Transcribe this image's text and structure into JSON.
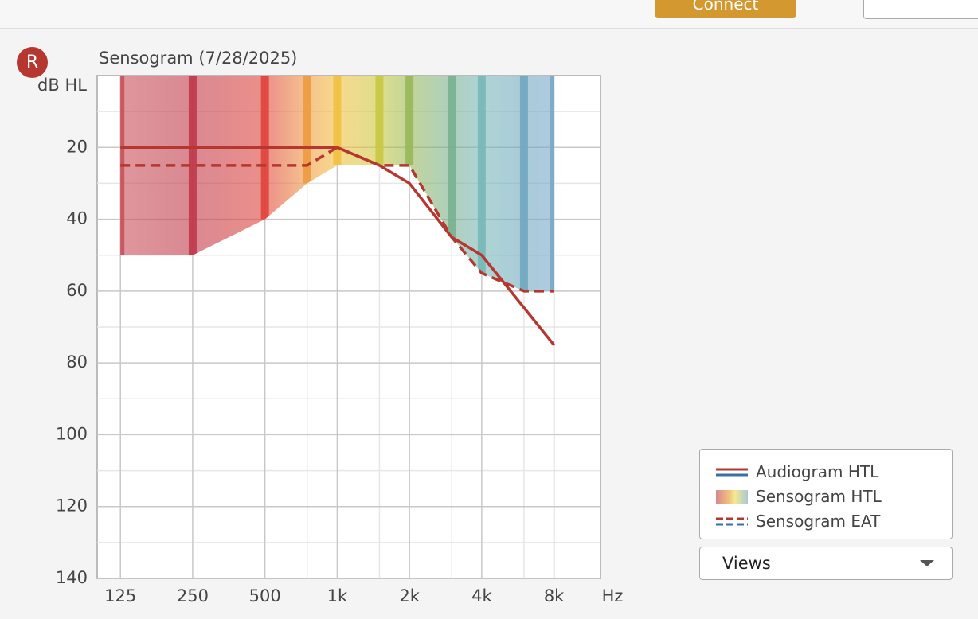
{
  "header": {
    "connect_button": "Connect"
  },
  "ear_badge": "R",
  "views_button": "Views",
  "chart_data": {
    "type": "line",
    "title": "Sensogram (7/28/2025)",
    "y_label": "dB HL",
    "x_label": "Hz",
    "xscale": "log",
    "y_inverted": true,
    "grid": true,
    "xlim": [
      100,
      12500
    ],
    "ylim": [
      0,
      140
    ],
    "xticks": [
      125,
      250,
      500,
      {
        "value": 1000,
        "label": "1k"
      },
      {
        "value": 2000,
        "label": "2k"
      },
      {
        "value": 4000,
        "label": "4k"
      },
      {
        "value": 8000,
        "label": "8k"
      }
    ],
    "minor_xticks": [
      750,
      1500,
      3000,
      6000
    ],
    "yticks": [
      20,
      40,
      60,
      80,
      100,
      120,
      140
    ],
    "minor_yticks": [
      10,
      30,
      50,
      70,
      90,
      110,
      130
    ],
    "series": [
      {
        "name": "Audiogram HTL",
        "kind": "line",
        "style": "solid",
        "color": "#b5372f",
        "x": [
          125,
          250,
          500,
          1000,
          1500,
          2000,
          3000,
          4000,
          8000
        ],
        "values": [
          20,
          20,
          20,
          20,
          25,
          30,
          45,
          50,
          75
        ]
      },
      {
        "name": "Sensogram HTL",
        "kind": "area",
        "x": [
          125,
          250,
          500,
          750,
          1000,
          1500,
          2000,
          3000,
          4000,
          6000,
          8000
        ],
        "values": [
          50,
          50,
          40,
          30,
          25,
          25,
          25,
          45,
          55,
          60,
          60
        ],
        "colors": [
          "#c9505a",
          "#c0394a",
          "#e0443c",
          "#ee9a40",
          "#f2c040",
          "#c8c840",
          "#98b858",
          "#78b090",
          "#78b8b8",
          "#70a8c0",
          "#78a8c8"
        ]
      },
      {
        "name": "Sensogram EAT",
        "kind": "line",
        "style": "dashed",
        "color": "#b5372f",
        "x": [
          125,
          250,
          500,
          750,
          1000,
          1500,
          2000,
          3000,
          4000,
          6000,
          8000
        ],
        "values": [
          25,
          25,
          25,
          25,
          20,
          25,
          25,
          45,
          55,
          60,
          60
        ]
      }
    ]
  }
}
